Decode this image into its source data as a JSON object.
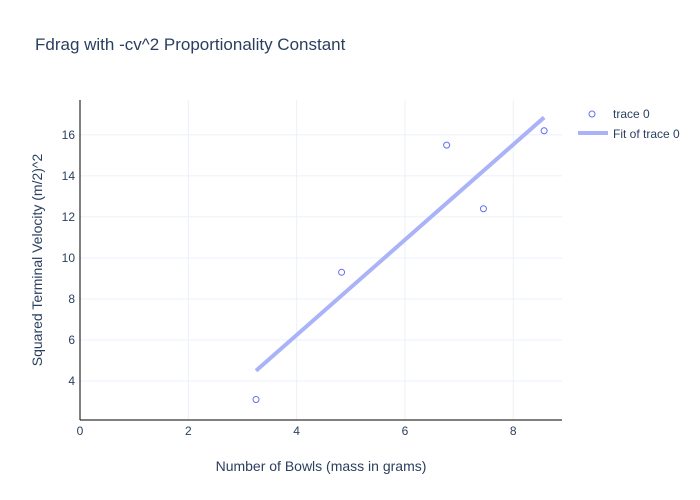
{
  "chart_data": {
    "type": "scatter",
    "title": "Fdrag with -cv^2 Proportionality Constant",
    "xlabel": "Number of Bowls (mass in grams)",
    "ylabel": "Squared Terminal Velocity (m/2)^2",
    "xlim": [
      0,
      8.9
    ],
    "ylim": [
      2.1,
      17.7
    ],
    "xticks": [
      0,
      2,
      4,
      6,
      8
    ],
    "yticks": [
      4,
      6,
      8,
      10,
      12,
      14,
      16
    ],
    "grid": true,
    "legend_position": "top-right",
    "series": [
      {
        "name": "trace 0",
        "mode": "markers",
        "marker": "open-circle",
        "color": "#636efa",
        "x": [
          3.25,
          4.83,
          6.77,
          7.45,
          8.57
        ],
        "y": [
          3.1,
          9.3,
          15.5,
          12.4,
          16.2
        ]
      },
      {
        "name": "Fit of trace 0",
        "mode": "line",
        "color": "#aab2f8",
        "x": [
          3.25,
          8.57
        ],
        "y": [
          4.5,
          16.85
        ]
      }
    ]
  }
}
